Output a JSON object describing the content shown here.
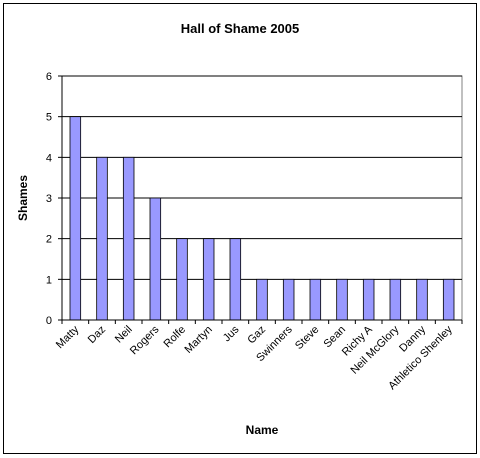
{
  "chart_data": {
    "type": "bar",
    "title": "Hall of Shame 2005",
    "xlabel": "Name",
    "ylabel": "Shames",
    "categories": [
      "Matty",
      "Daz",
      "Neil",
      "Rogers",
      "Rolfe",
      "Martyn",
      "Jus",
      "Gaz",
      "Swinners",
      "Steve",
      "Sean",
      "Richy A",
      "Neil McGlory",
      "Danny",
      "Athletico Shenley"
    ],
    "values": [
      5,
      4,
      4,
      3,
      2,
      2,
      2,
      1,
      1,
      1,
      1,
      1,
      1,
      1,
      1
    ],
    "ylim": [
      0,
      6
    ],
    "yticks": [
      0,
      1,
      2,
      3,
      4,
      5,
      6
    ],
    "grid": true,
    "legend": "none",
    "colors": {
      "bar_fill": "#9999FF",
      "bar_stroke": "#000000",
      "plot_background": "#FFFFFF",
      "gridline": "#000000"
    }
  }
}
